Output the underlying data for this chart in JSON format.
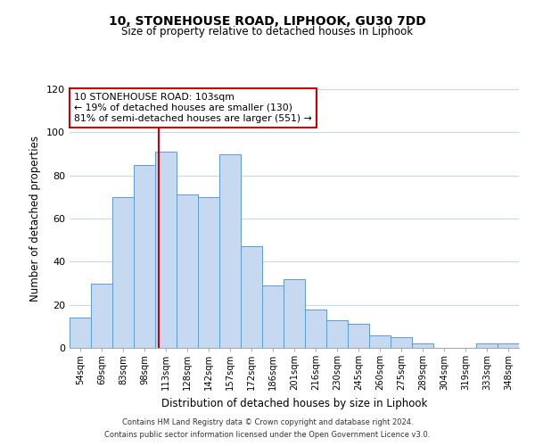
{
  "title": "10, STONEHOUSE ROAD, LIPHOOK, GU30 7DD",
  "subtitle": "Size of property relative to detached houses in Liphook",
  "xlabel": "Distribution of detached houses by size in Liphook",
  "ylabel": "Number of detached properties",
  "categories": [
    "54sqm",
    "69sqm",
    "83sqm",
    "98sqm",
    "113sqm",
    "128sqm",
    "142sqm",
    "157sqm",
    "172sqm",
    "186sqm",
    "201sqm",
    "216sqm",
    "230sqm",
    "245sqm",
    "260sqm",
    "275sqm",
    "289sqm",
    "304sqm",
    "319sqm",
    "333sqm",
    "348sqm"
  ],
  "values": [
    14,
    30,
    70,
    85,
    91,
    71,
    70,
    90,
    47,
    29,
    32,
    18,
    13,
    11,
    6,
    5,
    2,
    0,
    0,
    2,
    2
  ],
  "bar_color": "#c6d9f0",
  "bar_edge_color": "#5b9bd5",
  "ylim": [
    0,
    120
  ],
  "yticks": [
    0,
    20,
    40,
    60,
    80,
    100,
    120
  ],
  "property_label": "10 STONEHOUSE ROAD: 103sqm",
  "annotation_line1": "← 19% of detached houses are smaller (130)",
  "annotation_line2": "81% of semi-detached houses are larger (551) →",
  "vline_color": "#cc0000",
  "vline_x_index": 3.667,
  "box_color": "#cc0000",
  "footer_line1": "Contains HM Land Registry data © Crown copyright and database right 2024.",
  "footer_line2": "Contains public sector information licensed under the Open Government Licence v3.0.",
  "background_color": "#ffffff",
  "grid_color": "#c8d8ec"
}
